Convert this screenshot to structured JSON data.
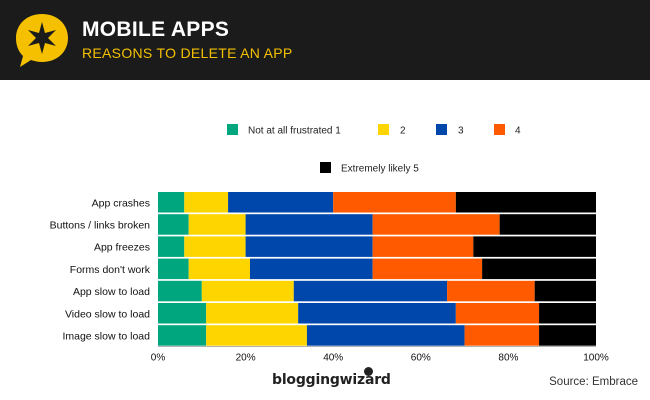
{
  "header": {
    "title": "MOBILE APPS",
    "subtitle": "REASONS TO DELETE AN APP",
    "badge_icon": "star-burst-speech-bubble-icon",
    "badge_color": "#f5c000"
  },
  "footer": {
    "brand": "bloggingwizard",
    "source": "Source: Embrace"
  },
  "chart_data": {
    "type": "bar",
    "orientation": "horizontal-stacked-100",
    "categories": [
      "App crashes",
      "Buttons / links broken",
      "App freezes",
      "Forms don't work",
      "App slow to load",
      "Video slow to load",
      "Image slow to load"
    ],
    "series": [
      {
        "name": "Not at all frustrated 1",
        "color": "#00a67e",
        "values": [
          6,
          7,
          6,
          7,
          10,
          11,
          11
        ]
      },
      {
        "name": "2",
        "color": "#ffd500",
        "values": [
          10,
          13,
          14,
          14,
          21,
          21,
          23
        ]
      },
      {
        "name": "3",
        "color": "#0047ab",
        "values": [
          24,
          29,
          29,
          28,
          35,
          36,
          36
        ]
      },
      {
        "name": "4",
        "color": "#ff5a00",
        "values": [
          28,
          29,
          23,
          25,
          20,
          19,
          17
        ]
      },
      {
        "name": "Extremely likely 5",
        "color": "#000000",
        "values": [
          32,
          22,
          28,
          26,
          14,
          13,
          13
        ]
      }
    ],
    "x_ticks": [
      "0%",
      "20%",
      "40%",
      "60%",
      "80%",
      "100%"
    ],
    "xlim": [
      0,
      100
    ],
    "legend_position": "top",
    "grid": false
  }
}
